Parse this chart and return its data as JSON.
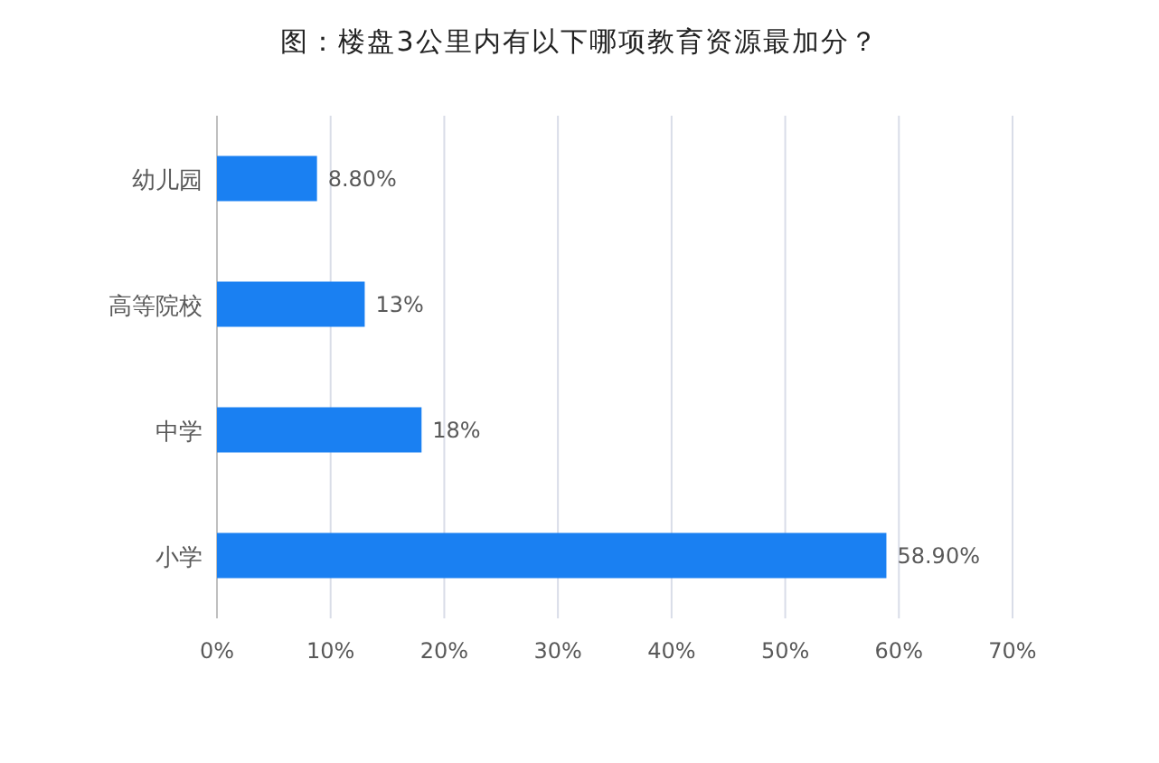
{
  "chart_data": {
    "type": "bar",
    "orientation": "horizontal",
    "title": "图：楼盘3公里内有以下哪项教育资源最加分？",
    "categories": [
      "幼儿园",
      "高等院校",
      "中学",
      "小学"
    ],
    "values": [
      8.8,
      13,
      18,
      58.9
    ],
    "value_labels": [
      "8.80%",
      "13%",
      "18%",
      "58.90%"
    ],
    "color": "#1a80f2",
    "xlim": [
      0,
      70
    ],
    "xticks": [
      {
        "value": 0,
        "label": "0%"
      },
      {
        "value": 10,
        "label": "10%"
      },
      {
        "value": 20,
        "label": "20%"
      },
      {
        "value": 30,
        "label": "30%"
      },
      {
        "value": 40,
        "label": "40%"
      },
      {
        "value": 50,
        "label": "50%"
      },
      {
        "value": 60,
        "label": "60%"
      },
      {
        "value": 70,
        "label": "70%"
      }
    ],
    "grid": "x"
  }
}
